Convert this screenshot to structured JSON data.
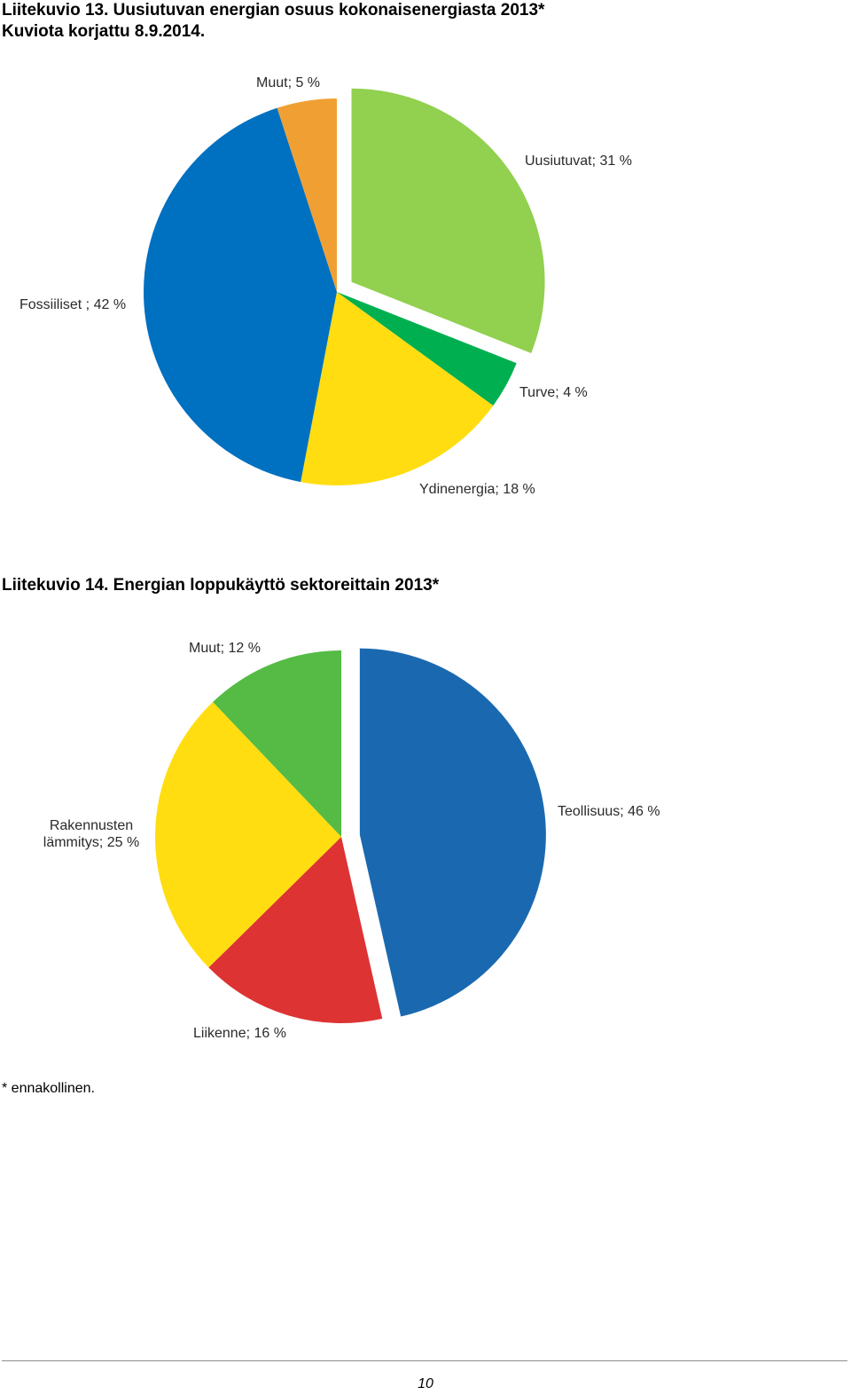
{
  "page": {
    "title1_line1": "Liitekuvio 13. Uusiutuvan energian osuus kokonaisenergiasta 2013*",
    "title1_line2": "Kuviota korjattu 8.9.2014.",
    "title2": "Liitekuvio 14. Energian loppukäyttö sektoreittain 2013*",
    "footnote": "* ennakollinen.",
    "page_number": "10"
  },
  "chart_data": [
    {
      "type": "pie",
      "title": "Liitekuvio 13. Uusiutuvan energian osuus kokonaisenergiasta 2013*",
      "start_angle_deg": 0,
      "direction": "clockwise",
      "slices": [
        {
          "label": "Uusiutuvat; 31  %",
          "name": "Uusiutuvat",
          "value": 31,
          "color": "#92d050",
          "exploded": true
        },
        {
          "label": "Turve; 4  %",
          "name": "Turve",
          "value": 4,
          "color": "#00b050",
          "exploded": false
        },
        {
          "label": "Ydinenergia; 18 %",
          "name": "Ydinenergia",
          "value": 18,
          "color": "#ffdd11",
          "exploded": false
        },
        {
          "label": "Fossiiliset ; 42 %",
          "name": "Fossiiliset",
          "value": 42,
          "color": "#0070c0",
          "exploded": false
        },
        {
          "label": "Muut; 5 %",
          "name": "Muut",
          "value": 5,
          "color": "#f0a033",
          "exploded": false
        }
      ]
    },
    {
      "type": "pie",
      "title": "Liitekuvio 14. Energian loppukäyttö sektoreittain 2013*",
      "start_angle_deg": 0,
      "direction": "clockwise",
      "slices": [
        {
          "label": "Teollisuus; 46  %",
          "name": "Teollisuus",
          "value": 46,
          "color": "#1a69b0",
          "exploded": true
        },
        {
          "label": "Liikenne; 16  %",
          "name": "Liikenne",
          "value": 16,
          "color": "#dd3333",
          "exploded": false
        },
        {
          "label": [
            "Rakennusten",
            "lämmitys; 25 %"
          ],
          "name": "Rakennusten lämmitys",
          "value": 25,
          "color": "#ffdd11",
          "exploded": false
        },
        {
          "label": "Muut; 12  %",
          "name": "Muut",
          "value": 12,
          "color": "#55bb44",
          "exploded": false
        }
      ]
    }
  ]
}
